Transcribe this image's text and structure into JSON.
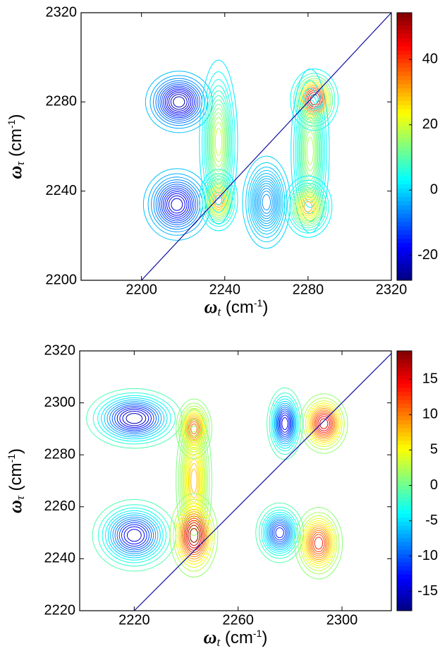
{
  "chart_data": [
    {
      "type": "contour",
      "xlabel": [
        "ω",
        "t",
        " (cm",
        "-1",
        ")"
      ],
      "ylabel": [
        "ω",
        "τ",
        " (cm",
        "-1",
        ")"
      ],
      "xlim": [
        2171,
        2320
      ],
      "ylim": [
        2200,
        2320
      ],
      "xticks": [
        2200,
        2240,
        2280,
        2320
      ],
      "yticks": [
        2200,
        2240,
        2280,
        2320
      ],
      "clim": [
        -27.6,
        54.3
      ],
      "cticks": [
        -20,
        0,
        20,
        40
      ],
      "diagonal_color": "#1010a0",
      "peaks": [
        {
          "x": 2218,
          "y": 2280,
          "value": -26,
          "width": [
            7,
            6
          ]
        },
        {
          "x": 2217,
          "y": 2234,
          "value": -22,
          "width": [
            7,
            7
          ]
        },
        {
          "x": 2260,
          "y": 2235,
          "value": -6,
          "width": [
            5,
            9
          ]
        },
        {
          "x": 2237,
          "y": 2236,
          "value": 35,
          "width": [
            4,
            6
          ]
        },
        {
          "x": 2237,
          "y": 2262,
          "value": 20,
          "width": [
            4,
            16
          ]
        },
        {
          "x": 2283,
          "y": 2281,
          "value": 52,
          "width": [
            5,
            6
          ]
        },
        {
          "x": 2281,
          "y": 2258,
          "value": 18,
          "width": [
            4,
            16
          ]
        },
        {
          "x": 2280,
          "y": 2233,
          "value": 32,
          "width": [
            5,
            6
          ]
        }
      ]
    },
    {
      "type": "contour",
      "xlabel": [
        "ω",
        "t",
        " (cm",
        "-1",
        ")"
      ],
      "ylabel": [
        "ω",
        "τ",
        " (cm",
        "-1",
        ")"
      ],
      "xlim": [
        2199,
        2319
      ],
      "ylim": [
        2220,
        2320
      ],
      "xticks": [
        2220,
        2260,
        2300
      ],
      "yticks": [
        2220,
        2240,
        2260,
        2280,
        2300,
        2320
      ],
      "clim": [
        -17.7,
        19
      ],
      "cticks": [
        -15,
        -10,
        -5,
        0,
        5,
        10,
        15
      ],
      "diagonal_color": "#1010a0",
      "peaks": [
        {
          "x": 2220,
          "y": 2294,
          "value": -17,
          "width": [
            8,
            5
          ]
        },
        {
          "x": 2243,
          "y": 2290,
          "value": 12,
          "width": [
            3,
            5
          ]
        },
        {
          "x": 2243,
          "y": 2270,
          "value": 8,
          "width": [
            3,
            12
          ]
        },
        {
          "x": 2220,
          "y": 2249,
          "value": -15,
          "width": [
            7,
            6
          ]
        },
        {
          "x": 2243,
          "y": 2249,
          "value": 19,
          "width": [
            4,
            7
          ]
        },
        {
          "x": 2278,
          "y": 2292,
          "value": -15,
          "width": [
            3,
            6
          ]
        },
        {
          "x": 2293,
          "y": 2292,
          "value": 17,
          "width": [
            4,
            5
          ]
        },
        {
          "x": 2276,
          "y": 2250,
          "value": -13,
          "width": [
            4,
            5
          ]
        },
        {
          "x": 2291,
          "y": 2246,
          "value": 14,
          "width": [
            4,
            6
          ]
        }
      ]
    }
  ]
}
